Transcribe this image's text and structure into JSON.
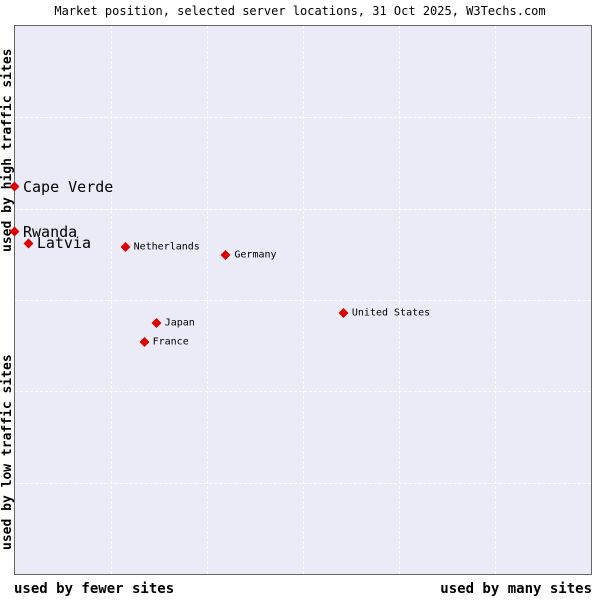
{
  "title": "Market position, selected server locations, 31 Oct 2025, W3Techs.com",
  "colors": {
    "background": "#ffffff",
    "plot_background": "#ebebf7",
    "grid": "#ffffff",
    "plot_border": "#666666",
    "point": "#dd0000",
    "text": "#000000"
  },
  "chart_data": {
    "type": "scatter",
    "title": "Market position, selected server locations, 31 Oct 2025, W3Techs.com",
    "grid": "on",
    "grid_divisions": 6,
    "legend": "none",
    "x_axis": {
      "label_left": "used by fewer sites",
      "label_right": "used by many sites",
      "range_pct": [
        0,
        100
      ]
    },
    "y_axis": {
      "label_top": "used by high traffic sites",
      "label_bottom": "used by low traffic sites",
      "range_pct": [
        0,
        100
      ]
    },
    "points": [
      {
        "name": "Cape Verde",
        "x_pct": 0.0,
        "y_pct": 29.3,
        "emphasis": "large"
      },
      {
        "name": "Rwanda",
        "x_pct": 0.0,
        "y_pct": 37.5,
        "emphasis": "large"
      },
      {
        "name": "Latvia",
        "x_pct": 2.4,
        "y_pct": 39.6,
        "emphasis": "large"
      },
      {
        "name": "Netherlands",
        "x_pct": 19.2,
        "y_pct": 40.4,
        "emphasis": "small"
      },
      {
        "name": "Germany",
        "x_pct": 36.7,
        "y_pct": 41.8,
        "emphasis": "small"
      },
      {
        "name": "Japan",
        "x_pct": 24.6,
        "y_pct": 54.2,
        "emphasis": "small"
      },
      {
        "name": "France",
        "x_pct": 22.5,
        "y_pct": 57.6,
        "emphasis": "small"
      },
      {
        "name": "United States",
        "x_pct": 57.1,
        "y_pct": 52.4,
        "emphasis": "small"
      }
    ]
  }
}
